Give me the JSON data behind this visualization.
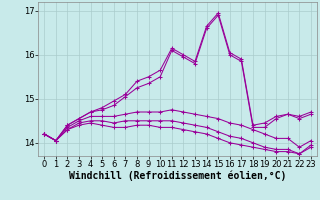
{
  "title": "",
  "xlabel": "Windchill (Refroidissement éolien,°C)",
  "ylabel": "",
  "bg_color": "#c8eaea",
  "line_color": "#990099",
  "grid_color": "#aacccc",
  "xlim": [
    -0.5,
    23.5
  ],
  "ylim": [
    13.7,
    17.2
  ],
  "yticks": [
    14,
    15,
    16,
    17
  ],
  "xticks": [
    0,
    1,
    2,
    3,
    4,
    5,
    6,
    7,
    8,
    9,
    10,
    11,
    12,
    13,
    14,
    15,
    16,
    17,
    18,
    19,
    20,
    21,
    22,
    23
  ],
  "series": [
    [
      14.2,
      14.05,
      14.3,
      14.4,
      14.45,
      14.4,
      14.35,
      14.35,
      14.4,
      14.4,
      14.35,
      14.35,
      14.3,
      14.25,
      14.2,
      14.1,
      14.0,
      13.95,
      13.9,
      13.85,
      13.8,
      13.8,
      13.75,
      13.9
    ],
    [
      14.2,
      14.05,
      14.3,
      14.45,
      14.5,
      14.5,
      14.45,
      14.5,
      14.5,
      14.5,
      14.5,
      14.5,
      14.45,
      14.4,
      14.35,
      14.25,
      14.15,
      14.1,
      14.0,
      13.9,
      13.85,
      13.85,
      13.75,
      13.95
    ],
    [
      14.2,
      14.05,
      14.35,
      14.5,
      14.6,
      14.6,
      14.6,
      14.65,
      14.7,
      14.7,
      14.7,
      14.75,
      14.7,
      14.65,
      14.6,
      14.55,
      14.45,
      14.4,
      14.3,
      14.2,
      14.1,
      14.1,
      13.9,
      14.05
    ],
    [
      14.2,
      14.05,
      14.4,
      14.55,
      14.7,
      14.75,
      14.85,
      15.05,
      15.25,
      15.35,
      15.5,
      16.1,
      15.95,
      15.8,
      16.6,
      16.9,
      16.0,
      15.85,
      14.35,
      14.35,
      14.55,
      14.65,
      14.55,
      14.65
    ],
    [
      14.2,
      14.05,
      14.4,
      14.55,
      14.7,
      14.8,
      14.95,
      15.1,
      15.4,
      15.5,
      15.65,
      16.15,
      16.0,
      15.85,
      16.65,
      16.95,
      16.05,
      15.9,
      14.4,
      14.45,
      14.6,
      14.65,
      14.6,
      14.7
    ]
  ],
  "xlabel_fontsize": 7,
  "tick_fontsize": 6,
  "figsize": [
    3.2,
    2.0
  ],
  "dpi": 100
}
